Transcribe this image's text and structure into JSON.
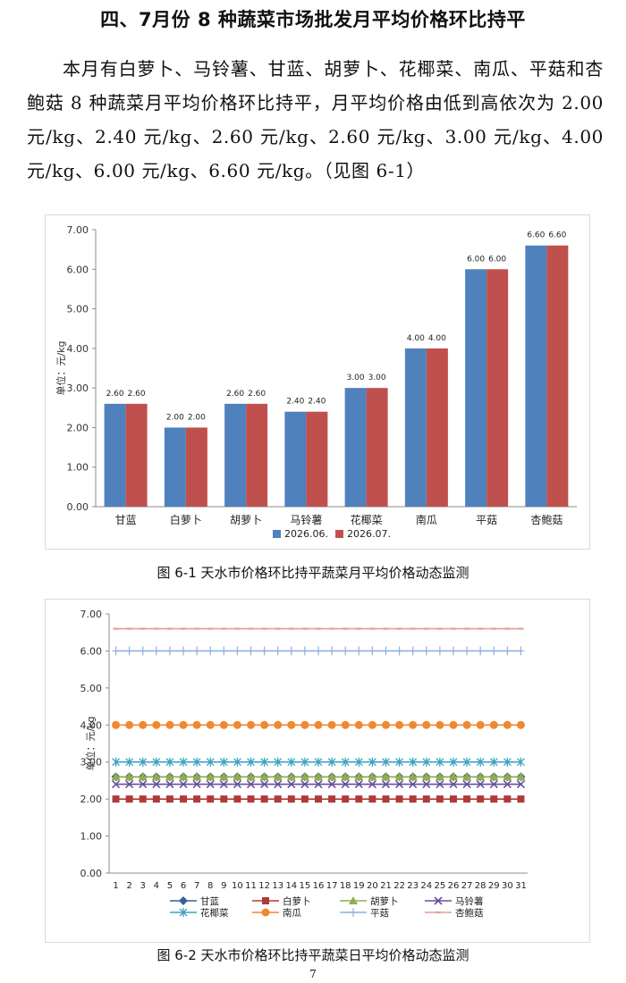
{
  "heading": "四、7月份 8 种蔬菜市场批发月平均价格环比持平",
  "paragraph": "本月有白萝卜、马铃薯、甘蓝、胡萝卜、花椰菜、南瓜、平菇和杏鲍菇 8 种蔬菜月平均价格环比持平，月平均价格由低到高依次为 2.00 元/kg、2.40 元/kg、2.60 元/kg、2.60 元/kg、3.00 元/kg、4.00 元/kg、6.00 元/kg、6.60 元/kg。（见图 6-1）",
  "caption1": "图 6-1  天水市价格环比持平蔬菜月平均价格动态监测",
  "caption2": "图 6-2  天水市价格环比持平蔬菜日平均价格动态监测",
  "page_number": "7",
  "chart_data": [
    {
      "type": "bar",
      "ylabel": "单位：元/kg",
      "ylim": [
        0,
        7
      ],
      "yticks": [
        "0.00",
        "1.00",
        "2.00",
        "3.00",
        "4.00",
        "5.00",
        "6.00",
        "7.00"
      ],
      "categories": [
        "甘蓝",
        "白萝卜",
        "胡萝卜",
        "马铃薯",
        "花椰菜",
        "南瓜",
        "平菇",
        "杏鲍菇"
      ],
      "series": [
        {
          "name": "2026.06.",
          "color": "#4f81bd",
          "values": [
            2.6,
            2.0,
            2.6,
            2.4,
            3.0,
            4.0,
            6.0,
            6.6
          ],
          "labels": [
            "2.60",
            "2.00",
            "2.60",
            "2.40",
            "3.00",
            "4.00",
            "6.00",
            "6.60"
          ]
        },
        {
          "name": "2026.07.",
          "color": "#c0504d",
          "values": [
            2.6,
            2.0,
            2.6,
            2.4,
            3.0,
            4.0,
            6.0,
            6.6
          ],
          "labels": [
            "2.60",
            "2.00",
            "2.60",
            "2.40",
            "3.00",
            "4.00",
            "6.00",
            "6.60"
          ]
        }
      ],
      "legend": "bottom"
    },
    {
      "type": "line",
      "ylabel": "单位：元/kg",
      "ylim": [
        0,
        7
      ],
      "yticks": [
        "0.00",
        "1.00",
        "2.00",
        "3.00",
        "4.00",
        "5.00",
        "6.00",
        "7.00"
      ],
      "x": [
        "1",
        "2",
        "3",
        "4",
        "5",
        "6",
        "7",
        "8",
        "9",
        "10",
        "11",
        "12",
        "13",
        "14",
        "15",
        "16",
        "17",
        "18",
        "19",
        "20",
        "21",
        "22",
        "23",
        "24",
        "25",
        "26",
        "27",
        "28",
        "29",
        "30",
        "31"
      ],
      "series": [
        {
          "name": "甘蓝",
          "color": "#3a5f9e",
          "marker": "diamond",
          "value": 2.6
        },
        {
          "name": "白萝卜",
          "color": "#b03a37",
          "marker": "square",
          "value": 2.0
        },
        {
          "name": "胡萝卜",
          "color": "#8db04a",
          "marker": "triangle",
          "value": 2.6
        },
        {
          "name": "马铃薯",
          "color": "#6a4f96",
          "marker": "x",
          "value": 2.4
        },
        {
          "name": "花椰菜",
          "color": "#3ba3c0",
          "marker": "asterisk",
          "value": 3.0
        },
        {
          "name": "南瓜",
          "color": "#f0882f",
          "marker": "circle",
          "value": 4.0
        },
        {
          "name": "平菇",
          "color": "#8fb0dc",
          "marker": "plus",
          "value": 6.0
        },
        {
          "name": "杏鲍菇",
          "color": "#e49c9a",
          "marker": "dash",
          "value": 6.6
        }
      ],
      "legend": "bottom"
    }
  ]
}
